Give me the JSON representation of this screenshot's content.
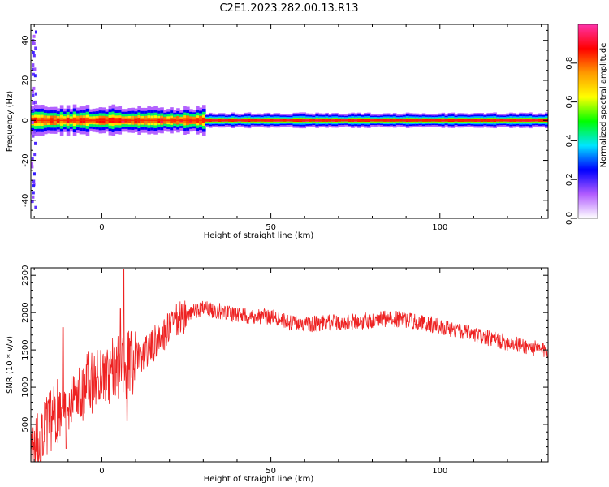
{
  "title": "C2E1.2023.282.00.13.R13",
  "colormap": [
    "#ffffff",
    "#b15cff",
    "#0000ff",
    "#00e5ff",
    "#00ff00",
    "#ffff00",
    "#ff9900",
    "#ff0000",
    "#ff33aa"
  ],
  "chart_data": [
    {
      "type": "heatmap",
      "xlabel": "Height of straight line (km)",
      "ylabel": "Frequency (Hz)",
      "xlim": [
        -21,
        132
      ],
      "ylim": [
        -49,
        48
      ],
      "xticks": [
        0,
        50,
        100
      ],
      "yticks": [
        40,
        20,
        0,
        -20,
        -40
      ],
      "colorbar": {
        "label": "Normalized spectral amplitude",
        "range": [
          0,
          1
        ],
        "ticks": [
          0.0,
          0.2,
          0.4,
          0.6,
          0.8
        ]
      },
      "description_values": {
        "band_center_hz": 0,
        "band_halfwidth_hz_start": 5,
        "band_halfwidth_hz_end": 3
      }
    },
    {
      "type": "line",
      "xlabel": "Height of straight line (km)",
      "ylabel": "SNR (10 * v/v)",
      "xlim": [
        -21,
        132
      ],
      "ylim": [
        0,
        2600
      ],
      "xticks": [
        0,
        50,
        100
      ],
      "yticks": [
        2500,
        2000,
        1500,
        1000,
        500
      ],
      "color": "#ee2222",
      "trend": {
        "x": [
          -21,
          -15,
          -10,
          -5,
          0,
          5,
          10,
          15,
          20,
          25,
          30,
          35,
          40,
          45,
          50,
          55,
          60,
          65,
          70,
          75,
          80,
          85,
          90,
          95,
          100,
          105,
          110,
          115,
          120,
          125,
          130,
          132
        ],
        "y": [
          150,
          550,
          850,
          1000,
          1150,
          1250,
          1350,
          1550,
          1800,
          1980,
          2050,
          2020,
          1980,
          1950,
          1950,
          1870,
          1840,
          1860,
          1870,
          1880,
          1900,
          1920,
          1900,
          1860,
          1820,
          1760,
          1700,
          1650,
          1600,
          1550,
          1500,
          1480
        ]
      },
      "spikes": [
        {
          "x": 6.5,
          "y": 2580
        },
        {
          "x": -11.5,
          "y": 1800
        },
        {
          "x": -10.5,
          "y": 180
        },
        {
          "x": 5.5,
          "y": 2050
        },
        {
          "x": 7.5,
          "y": 550
        }
      ]
    }
  ]
}
